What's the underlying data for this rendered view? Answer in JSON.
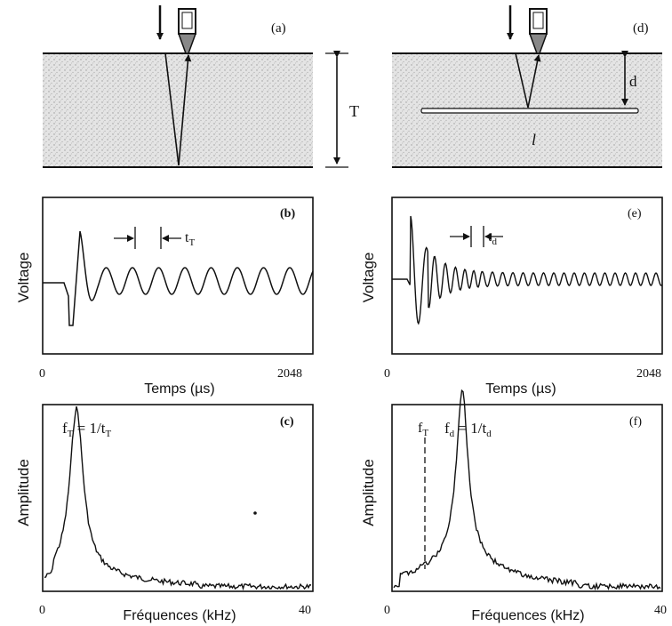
{
  "panels": {
    "a": {
      "label": "(a)",
      "thickness_label": "T"
    },
    "d": {
      "label": "(d)",
      "depth_label": "d",
      "defect_label": "l"
    },
    "b": {
      "label": "(b)",
      "period_label": "t",
      "period_sub": "T",
      "ylabel": "Voltage",
      "xlabel": "Temps (µs)",
      "x_min": "0",
      "x_max": "2048"
    },
    "e": {
      "label": "(e)",
      "period_label": "t",
      "period_sub": "d",
      "ylabel": "Voltage",
      "xlabel": "Temps (µs)",
      "x_min": "0",
      "x_max": "2048"
    },
    "c": {
      "label": "(c)",
      "formula_main": "f",
      "formula_sub": "T",
      "formula_eq": " = 1/t",
      "formula_sub2": "T",
      "ylabel": "Amplitude",
      "xlabel": "Fréquences (kHz)",
      "x_min": "0",
      "x_max": "40"
    },
    "f": {
      "label": "(f)",
      "marker_main": "f",
      "marker_sub": "T",
      "formula_main": "f",
      "formula_sub": "d",
      "formula_eq": " = 1/t",
      "formula_sub2": "d",
      "ylabel": "Amplitude",
      "xlabel": "Fréquences (kHz)",
      "x_min": "0",
      "x_max": "40"
    }
  },
  "chart_data": [
    {
      "type": "line",
      "panel": "b",
      "description_series": "time-domain voltage signal",
      "x_range": [
        0,
        2048
      ],
      "resonance_period": "t_T",
      "cycles_visible": 10
    },
    {
      "type": "line",
      "panel": "e",
      "x_range": [
        0,
        2048
      ],
      "resonance_period": "t_d",
      "cycles_visible": 22
    },
    {
      "type": "line",
      "panel": "c",
      "x_range": [
        0,
        40
      ],
      "peak_x": 6.5,
      "peak_label": "f_T = 1/t_T"
    },
    {
      "type": "line",
      "panel": "f",
      "x_range": [
        0,
        40
      ],
      "peak_x": 13.5,
      "peak_label": "f_d = 1/t_d",
      "marker_x": 6.5,
      "marker_label": "f_T"
    }
  ]
}
